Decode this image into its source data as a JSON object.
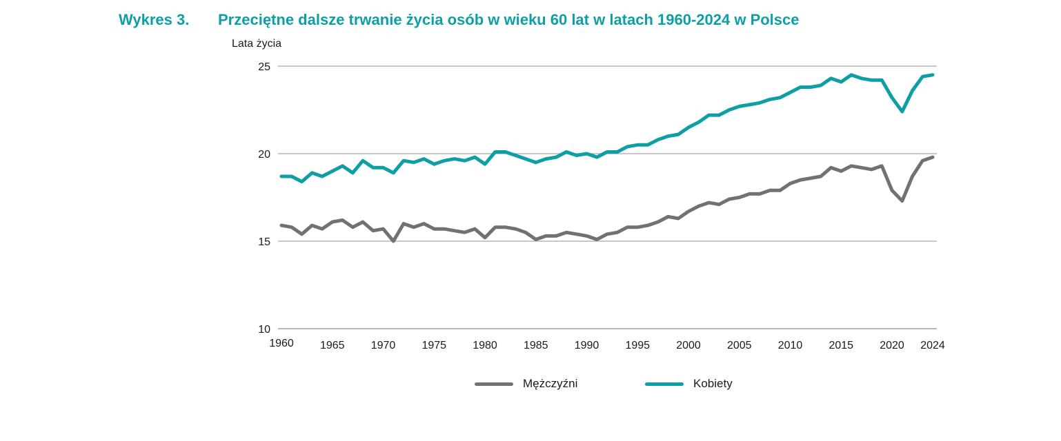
{
  "title": {
    "number": "Wykres 3.",
    "text": "Przeciętne dalsze trwanie życia osób w wieku 60 lat w latach 1960-2024 w Polsce"
  },
  "colors": {
    "men": "#717171",
    "women": "#0d9ea6",
    "grid": "#a6a6a6"
  },
  "chart_data": {
    "type": "line",
    "title": "Przeciętne dalsze trwanie życia osób w wieku 60 lat w latach 1960-2024 w Polsce",
    "ylabel": "Lata życia",
    "xlabel": "",
    "ylim": [
      10,
      25
    ],
    "yticks": [
      "10",
      "15",
      "20",
      "25"
    ],
    "xticks": [
      "1960",
      "1965",
      "1970",
      "1975",
      "1980",
      "1985",
      "1990",
      "1995",
      "2000",
      "2005",
      "2010",
      "2015",
      "2020",
      "2024"
    ],
    "xlim": [
      1960,
      2024
    ],
    "grid": true,
    "legend_position": "bottom",
    "x_start": 1960,
    "series": [
      {
        "name": "Mężczyźni",
        "color": "#717171",
        "values": [
          15.9,
          15.8,
          15.4,
          15.9,
          15.7,
          16.1,
          16.2,
          15.8,
          16.1,
          15.6,
          15.7,
          15.0,
          16.0,
          15.8,
          16.0,
          15.7,
          15.7,
          15.6,
          15.5,
          15.7,
          15.2,
          15.8,
          15.8,
          15.7,
          15.5,
          15.1,
          15.3,
          15.3,
          15.5,
          15.4,
          15.3,
          15.1,
          15.4,
          15.5,
          15.8,
          15.8,
          15.9,
          16.1,
          16.4,
          16.3,
          16.7,
          17.0,
          17.2,
          17.1,
          17.4,
          17.5,
          17.7,
          17.7,
          17.9,
          17.9,
          18.3,
          18.5,
          18.6,
          18.7,
          19.2,
          19.0,
          19.3,
          19.2,
          19.1,
          19.3,
          17.9,
          17.3,
          18.7,
          19.6,
          19.8
        ]
      },
      {
        "name": "Kobiety",
        "color": "#0d9ea6",
        "values": [
          18.7,
          18.7,
          18.4,
          18.9,
          18.7,
          19.0,
          19.3,
          18.9,
          19.6,
          19.2,
          19.2,
          18.9,
          19.6,
          19.5,
          19.7,
          19.4,
          19.6,
          19.7,
          19.6,
          19.8,
          19.4,
          20.1,
          20.1,
          19.9,
          19.7,
          19.5,
          19.7,
          19.8,
          20.1,
          19.9,
          20.0,
          19.8,
          20.1,
          20.1,
          20.4,
          20.5,
          20.5,
          20.8,
          21.0,
          21.1,
          21.5,
          21.8,
          22.2,
          22.2,
          22.5,
          22.7,
          22.8,
          22.9,
          23.1,
          23.2,
          23.5,
          23.8,
          23.8,
          23.9,
          24.3,
          24.1,
          24.5,
          24.3,
          24.2,
          24.2,
          23.2,
          22.4,
          23.6,
          24.4,
          24.5
        ]
      }
    ]
  }
}
